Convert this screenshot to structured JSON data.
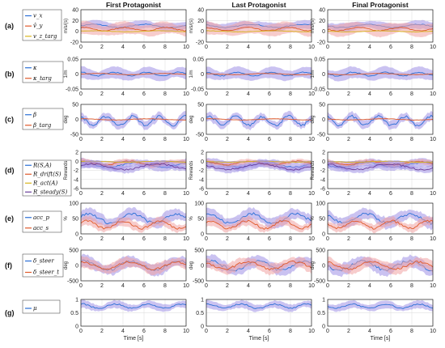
{
  "colors": {
    "blue": "#2a6fd6",
    "orange": "#e05a2b",
    "yellow": "#d9b51c",
    "purple": "#6a3d9a",
    "band_blue": "#9f8fe6",
    "band_red": "#f1a3a3"
  },
  "chart_data": {
    "type": "line",
    "x_tick_labels": [
      "0",
      "2",
      "4",
      "6",
      "8",
      "10"
    ],
    "xlabel": "Time [s]",
    "xlim": [
      0,
      10
    ],
    "grid": true,
    "columns": [
      "First Protagonist",
      "Last Protagonist",
      "Final Protagonist"
    ],
    "rows": [
      {
        "label": "(a)",
        "unit": "m/s/(s)",
        "ylim": [
          -20,
          40
        ],
        "y_ticks": [
          "40",
          "20",
          "0",
          "-20"
        ],
        "legend": [
          "v_x",
          "v̂_y",
          "v_z_targ"
        ],
        "series": [
          {
            "name": "v_x",
            "color": "#2a6fd6",
            "level": 10,
            "wave": 3,
            "freq": 1.3,
            "band": 8
          },
          {
            "name": "v̂_y",
            "color": "#e05a2b",
            "level": 4,
            "wave": 3,
            "freq": 1.6,
            "band": 12
          },
          {
            "name": "v_z_targ",
            "color": "#d9b51c",
            "level": 0,
            "wave": 1,
            "freq": 1.0,
            "band": 0
          }
        ]
      },
      {
        "label": "(b)",
        "unit": "1/m",
        "ylim": [
          -0.05,
          0.05
        ],
        "y_ticks": [
          "0.05",
          "0",
          "-0.05"
        ],
        "legend": [
          "κ",
          "κ_targ"
        ],
        "series": [
          {
            "name": "κ",
            "color": "#2a6fd6",
            "level": 0,
            "wave": 0.006,
            "freq": 2.0,
            "band": 0.02
          },
          {
            "name": "κ_targ",
            "color": "#e05a2b",
            "level": 0,
            "wave": 0.002,
            "freq": 1.0,
            "band": 0
          }
        ]
      },
      {
        "label": "(c)",
        "unit": "deg",
        "ylim": [
          -50,
          50
        ],
        "y_ticks": [
          "50",
          "0",
          "-50"
        ],
        "legend": [
          "β",
          "β_targ"
        ],
        "series": [
          {
            "name": "β",
            "color": "#2a6fd6",
            "level": -5,
            "wave": 15,
            "freq": 2.5,
            "band": 15
          },
          {
            "name": "β_targ",
            "color": "#e05a2b",
            "level": 0,
            "wave": 2,
            "freq": 1.0,
            "band": 0
          }
        ]
      },
      {
        "label": "(d)",
        "unit": "Rewards",
        "ylim": [
          -6,
          2
        ],
        "y_ticks": [
          "2",
          "0",
          "-2",
          "-4",
          "-6"
        ],
        "legend": [
          "R(S,A)",
          "R_drift(S)",
          "R_act(A)",
          "R_steady(S)"
        ],
        "series": [
          {
            "name": "R(S,A)",
            "color": "#2a6fd6",
            "level": -0.8,
            "wave": 0.5,
            "freq": 1.2,
            "band": 1.0
          },
          {
            "name": "R_drift(S)",
            "color": "#e05a2b",
            "level": -0.4,
            "wave": 0.4,
            "freq": 1.4,
            "band": 0.6
          },
          {
            "name": "R_act(A)",
            "color": "#d9b51c",
            "level": -0.1,
            "wave": 0.1,
            "freq": 1.0,
            "band": 0.2
          },
          {
            "name": "R_steady(S)",
            "color": "#6a3d9a",
            "level": -1.2,
            "wave": 0.6,
            "freq": 1.0,
            "band": 0.8
          }
        ]
      },
      {
        "label": "(e)",
        "unit": "%",
        "ylim": [
          0,
          100
        ],
        "y_ticks": [
          "100",
          "50",
          "0"
        ],
        "legend": [
          "acc_p",
          "acc_s"
        ],
        "series": [
          {
            "name": "acc_p",
            "color": "#2a6fd6",
            "level": 50,
            "wave": 15,
            "freq": 1.5,
            "band": 20
          },
          {
            "name": "acc_s",
            "color": "#e05a2b",
            "level": 30,
            "wave": 12,
            "freq": 1.8,
            "band": 15
          }
        ]
      },
      {
        "label": "(f)",
        "unit": "deg",
        "ylim": [
          -500,
          500
        ],
        "y_ticks": [
          "500",
          "0",
          "-500"
        ],
        "legend": [
          "δ_steer",
          "δ_steer_t"
        ],
        "series": [
          {
            "name": "δ_steer",
            "color": "#2a6fd6",
            "level": 0,
            "wave": 150,
            "freq": 1.4,
            "band": 200
          },
          {
            "name": "δ_steer_t",
            "color": "#e05a2b",
            "level": 0,
            "wave": 120,
            "freq": 1.4,
            "band": 180
          }
        ]
      },
      {
        "label": "(g)",
        "unit": "",
        "ylim": [
          0,
          1
        ],
        "y_ticks": [
          "1",
          "0.5",
          "0"
        ],
        "legend": [
          "μ"
        ],
        "series": [
          {
            "name": "μ",
            "color": "#2a6fd6",
            "level": 0.75,
            "wave": 0.08,
            "freq": 2.0,
            "band": 0.15
          }
        ]
      }
    ]
  }
}
